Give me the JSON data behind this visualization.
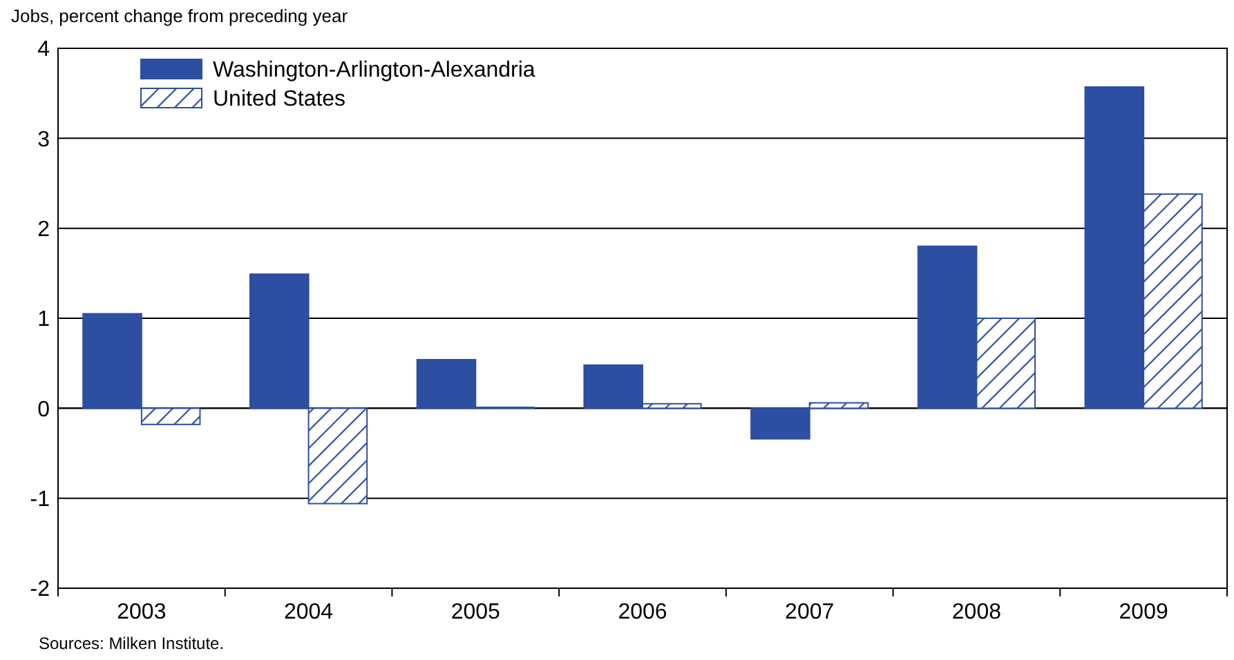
{
  "chart_data": {
    "type": "bar",
    "subtitle": "Jobs, percent change from preceding year",
    "categories": [
      "2003",
      "2004",
      "2005",
      "2006",
      "2007",
      "2008",
      "2009"
    ],
    "series": [
      {
        "name": "Washington-Arlington-Alexandria",
        "color": "#2e4ea1",
        "values": [
          1.05,
          1.49,
          0.54,
          0.48,
          -0.34,
          1.8,
          3.57
        ]
      },
      {
        "name": "United States",
        "color": "#2e4ea1",
        "values": [
          -0.18,
          -1.06,
          0.01,
          0.05,
          0.06,
          1.0,
          2.38
        ]
      }
    ],
    "ylim": [
      -2,
      4
    ],
    "yticks": [
      -2,
      -1,
      0,
      1,
      2,
      3,
      4
    ],
    "grid": "y",
    "legend": "top left",
    "annotations": [
      "Sources: Milken Institute."
    ]
  }
}
